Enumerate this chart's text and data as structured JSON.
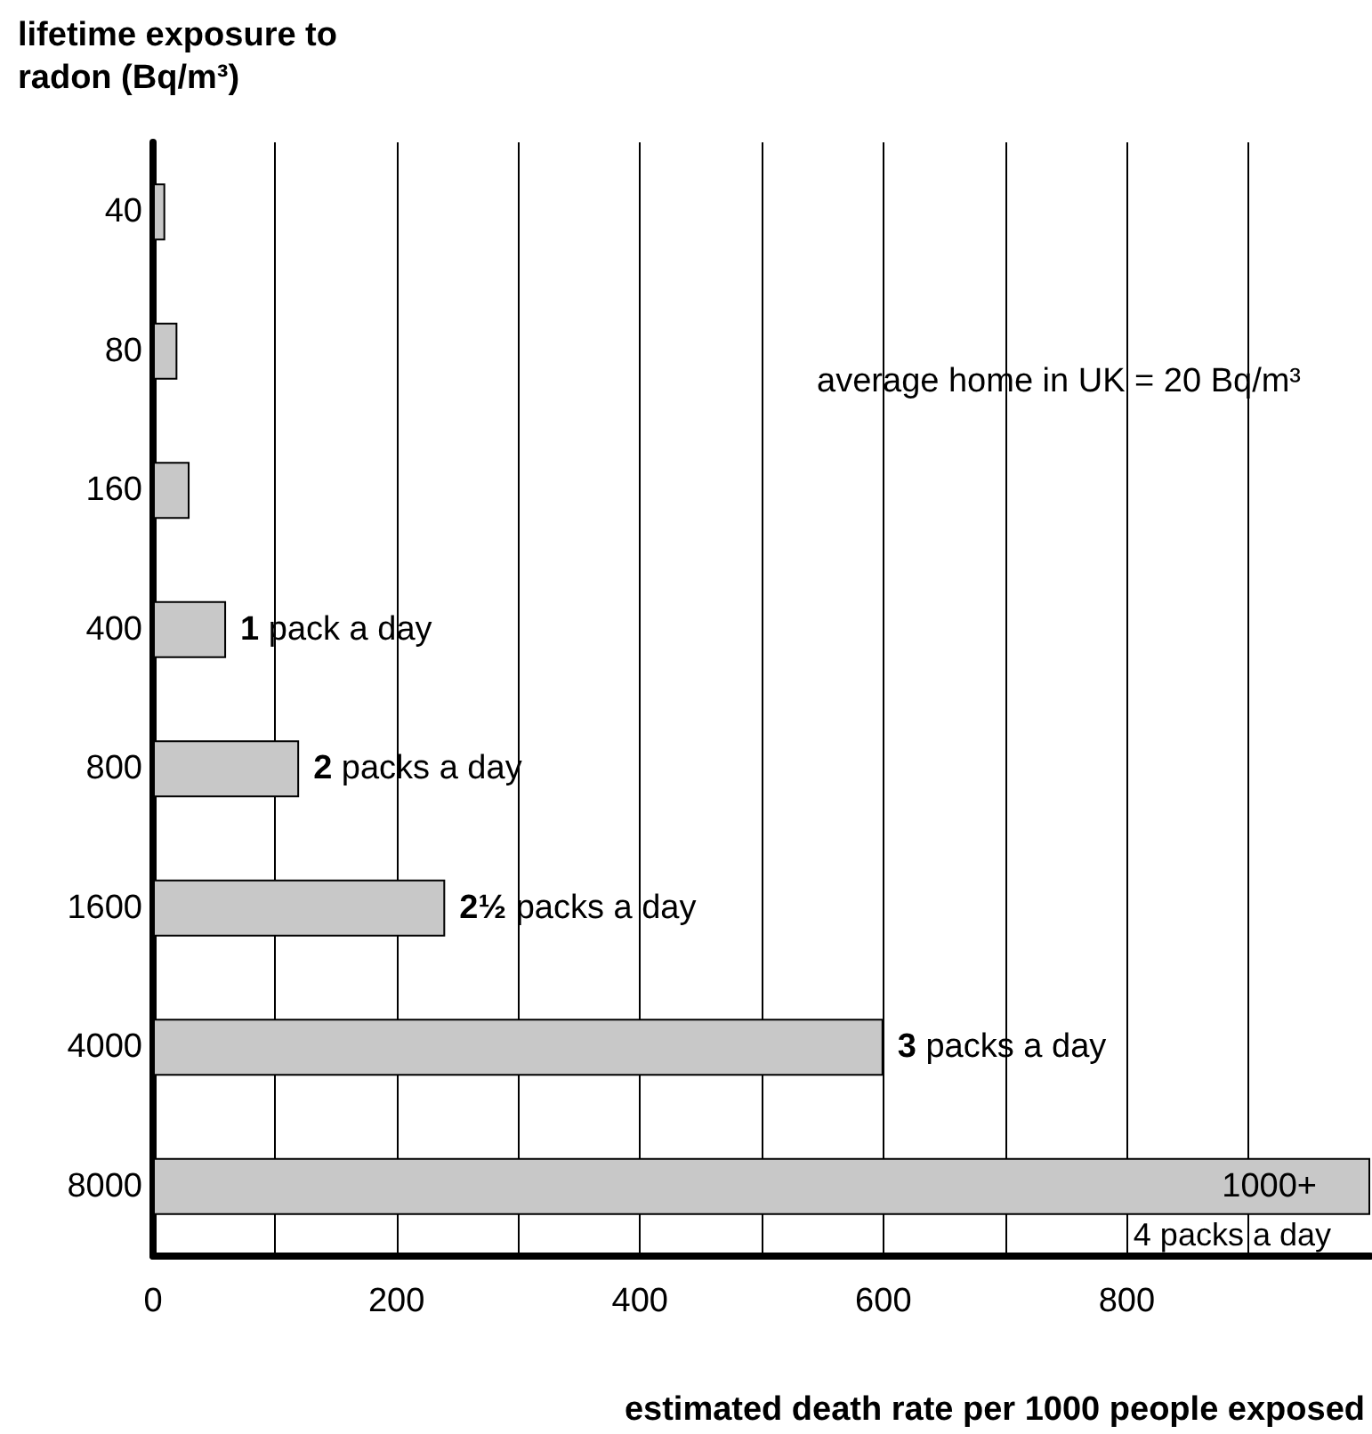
{
  "chart_data": {
    "type": "bar",
    "orientation": "horizontal",
    "ylabel": "lifetime exposure to radon (Bq/m³)",
    "xlabel": "estimated death rate per 1000 people exposed",
    "categories": [
      "40",
      "80",
      "160",
      "400",
      "800",
      "1600",
      "4000",
      "8000"
    ],
    "values": [
      10,
      20,
      30,
      60,
      120,
      240,
      600,
      1000
    ],
    "value_labels": [
      null,
      null,
      null,
      null,
      null,
      null,
      null,
      "1000+"
    ],
    "color": "#c8c8c8",
    "xlim": [
      0,
      1000
    ],
    "xticks": [
      0,
      {
        "value": 100,
        "label": null
      },
      200,
      {
        "value": 300,
        "label": null
      },
      400,
      {
        "value": 500,
        "label": null
      },
      600,
      {
        "value": 700,
        "label": null
      },
      800,
      {
        "value": 900,
        "label": null
      }
    ],
    "grid": "x",
    "annotations": [
      "average home in UK = 20 Bq/m³",
      {
        "text": "1 pack a day",
        "x": 60,
        "y": "400"
      },
      {
        "text": "2 packs a day",
        "x": 120,
        "y": "800"
      },
      {
        "text": "2½ packs a day",
        "x": 240,
        "y": "1600"
      },
      {
        "text": "3 packs a day",
        "x": 600,
        "y": "4000"
      },
      {
        "text": "4 packs a day",
        "x": 1000,
        "y": "8000"
      }
    ]
  }
}
